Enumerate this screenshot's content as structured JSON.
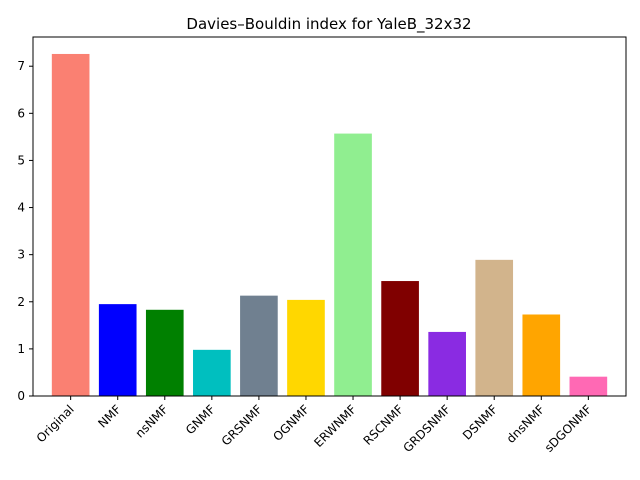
{
  "chart_data": {
    "type": "bar",
    "title": "Davies–Bouldin index for YaleB_32x32",
    "xlabel": "",
    "ylabel": "",
    "categories": [
      "Original",
      "NMF",
      "nsNMF",
      "GNMF",
      "GRSNMF",
      "OGNMF",
      "ERWNMF",
      "RSCNMF",
      "GRDSNMF",
      "DSNMF",
      "dnsNMF",
      "sDGONMF"
    ],
    "values": [
      7.26,
      1.95,
      1.83,
      0.98,
      2.13,
      2.04,
      5.57,
      2.44,
      1.36,
      2.89,
      1.73,
      0.41
    ],
    "colors": [
      "#fa8072",
      "#0000ff",
      "#008000",
      "#00bfbf",
      "#708090",
      "#ffd700",
      "#90ee90",
      "#800000",
      "#8a2be2",
      "#d2b48c",
      "#ffa500",
      "#ff69b4"
    ],
    "ylim": [
      0,
      7.62
    ],
    "yticks": [
      "0",
      "1",
      "2",
      "3",
      "4",
      "5",
      "6",
      "7"
    ],
    "grid": false,
    "legend": "none"
  }
}
